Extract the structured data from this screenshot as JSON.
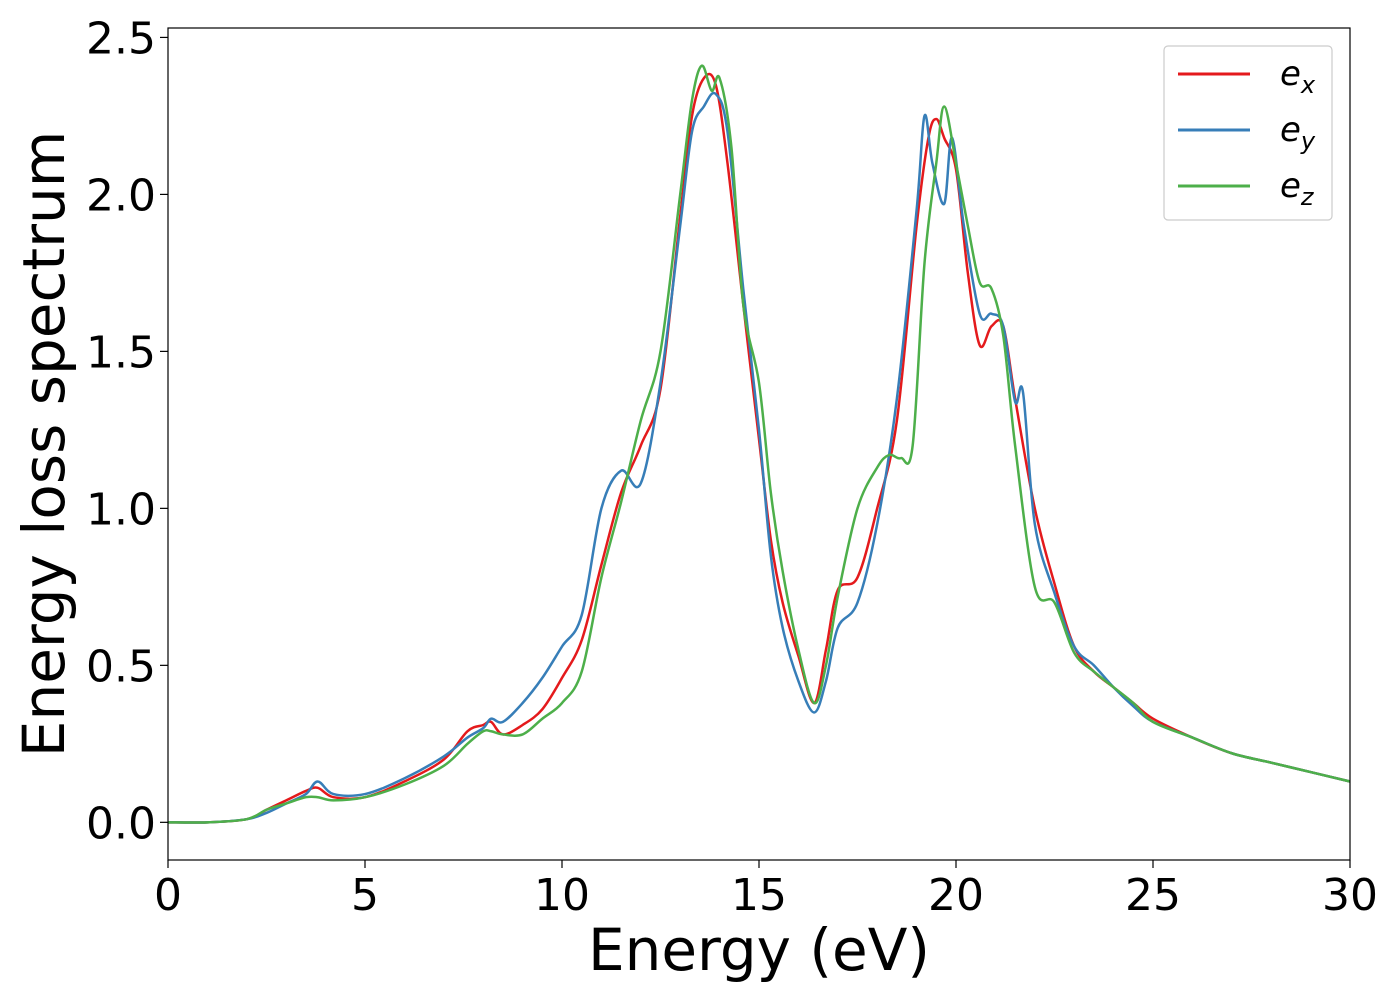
{
  "chart_data": {
    "type": "line",
    "xlabel": "Energy (eV)",
    "ylabel": "Energy loss spectrum",
    "xlim": [
      0,
      30
    ],
    "ylim": [
      -0.12,
      2.53
    ],
    "xticks": [
      0,
      5,
      10,
      15,
      20,
      25,
      30
    ],
    "xtick_labels": [
      "0",
      "5",
      "10",
      "15",
      "20",
      "25",
      "30"
    ],
    "yticks": [
      0.0,
      0.5,
      1.0,
      1.5,
      2.0,
      2.5
    ],
    "ytick_labels": [
      "0.0",
      "0.5",
      "1.0",
      "1.5",
      "2.0",
      "2.5"
    ],
    "grid": false,
    "legend_position": "top-right",
    "series": [
      {
        "name": "e_x",
        "label_main": "e",
        "label_sub": "x",
        "color": "#e41a1c",
        "x": [
          0,
          1,
          2,
          2.5,
          3,
          3.5,
          3.8,
          4.2,
          5,
          6,
          7,
          7.6,
          8,
          8.2,
          8.5,
          9,
          9.5,
          10,
          10.5,
          11,
          11.5,
          12,
          12.5,
          13,
          13.3,
          13.6,
          13.9,
          14.2,
          14.6,
          15,
          15.3,
          15.6,
          16,
          16.4,
          16.7,
          17,
          17.5,
          18,
          18.5,
          19,
          19.3,
          19.5,
          19.7,
          20,
          20.3,
          20.6,
          20.9,
          21.2,
          21.5,
          22,
          22.5,
          23,
          23.5,
          24,
          24.5,
          25,
          26,
          27,
          28,
          29,
          30
        ],
        "y": [
          0,
          0,
          0.01,
          0.04,
          0.07,
          0.1,
          0.11,
          0.08,
          0.08,
          0.13,
          0.2,
          0.29,
          0.31,
          0.32,
          0.28,
          0.31,
          0.36,
          0.46,
          0.58,
          0.82,
          1.05,
          1.2,
          1.38,
          1.93,
          2.25,
          2.37,
          2.35,
          2.1,
          1.65,
          1.22,
          0.9,
          0.7,
          0.53,
          0.38,
          0.55,
          0.74,
          0.78,
          1.0,
          1.28,
          1.9,
          2.18,
          2.24,
          2.18,
          2.08,
          1.75,
          1.52,
          1.58,
          1.58,
          1.35,
          1.0,
          0.76,
          0.56,
          0.48,
          0.43,
          0.38,
          0.33,
          0.27,
          0.22,
          0.19,
          0.16,
          0.13
        ]
      },
      {
        "name": "e_y",
        "label_main": "e",
        "label_sub": "y",
        "color": "#377eb8",
        "x": [
          0,
          1,
          2,
          2.5,
          3,
          3.5,
          3.8,
          4.2,
          5,
          6,
          7,
          7.6,
          8,
          8.2,
          8.5,
          9,
          9.5,
          10,
          10.5,
          11,
          11.5,
          12,
          12.5,
          13,
          13.3,
          13.6,
          13.9,
          14.2,
          14.6,
          15,
          15.3,
          15.6,
          16,
          16.4,
          16.7,
          17,
          17.5,
          18,
          18.5,
          19,
          19.2,
          19.4,
          19.7,
          19.9,
          20.2,
          20.6,
          20.9,
          21.2,
          21.5,
          21.7,
          22,
          22.5,
          23,
          23.5,
          24,
          24.5,
          25,
          26,
          27,
          28,
          29,
          30
        ],
        "y": [
          0,
          0,
          0.01,
          0.03,
          0.06,
          0.09,
          0.13,
          0.09,
          0.09,
          0.14,
          0.21,
          0.27,
          0.3,
          0.33,
          0.32,
          0.38,
          0.46,
          0.56,
          0.66,
          1.0,
          1.12,
          1.08,
          1.4,
          1.9,
          2.2,
          2.28,
          2.32,
          2.2,
          1.7,
          1.25,
          0.85,
          0.62,
          0.45,
          0.35,
          0.45,
          0.62,
          0.7,
          0.95,
          1.35,
          1.95,
          2.25,
          2.1,
          1.97,
          2.18,
          1.9,
          1.62,
          1.62,
          1.58,
          1.34,
          1.37,
          0.95,
          0.73,
          0.56,
          0.5,
          0.43,
          0.37,
          0.32,
          0.27,
          0.22,
          0.19,
          0.16,
          0.13
        ]
      },
      {
        "name": "e_z",
        "label_main": "e",
        "label_sub": "z",
        "color": "#4daf4a",
        "x": [
          0,
          1,
          2,
          2.5,
          3,
          3.5,
          3.8,
          4.2,
          5,
          6,
          7,
          7.6,
          8,
          8.2,
          8.5,
          9,
          9.5,
          10,
          10.5,
          11,
          11.5,
          12,
          12.5,
          13,
          13.3,
          13.55,
          13.8,
          14.0,
          14.3,
          14.6,
          15,
          15.3,
          15.6,
          16,
          16.4,
          16.7,
          17,
          17.5,
          18,
          18.3,
          18.6,
          18.9,
          19.2,
          19.5,
          19.7,
          20,
          20.3,
          20.6,
          20.9,
          21.2,
          21.5,
          22,
          22.5,
          23,
          23.5,
          24,
          24.5,
          25,
          26,
          27,
          28,
          29,
          30
        ],
        "y": [
          0,
          0,
          0.01,
          0.04,
          0.06,
          0.08,
          0.08,
          0.07,
          0.08,
          0.12,
          0.18,
          0.25,
          0.29,
          0.29,
          0.28,
          0.28,
          0.33,
          0.38,
          0.48,
          0.78,
          1.02,
          1.28,
          1.5,
          2.0,
          2.3,
          2.41,
          2.33,
          2.37,
          2.15,
          1.65,
          1.4,
          1.05,
          0.8,
          0.55,
          0.38,
          0.5,
          0.72,
          1.0,
          1.13,
          1.17,
          1.16,
          1.2,
          1.78,
          2.1,
          2.28,
          2.1,
          1.9,
          1.72,
          1.7,
          1.55,
          1.2,
          0.75,
          0.7,
          0.54,
          0.48,
          0.43,
          0.38,
          0.32,
          0.27,
          0.22,
          0.19,
          0.16,
          0.13
        ]
      }
    ]
  }
}
